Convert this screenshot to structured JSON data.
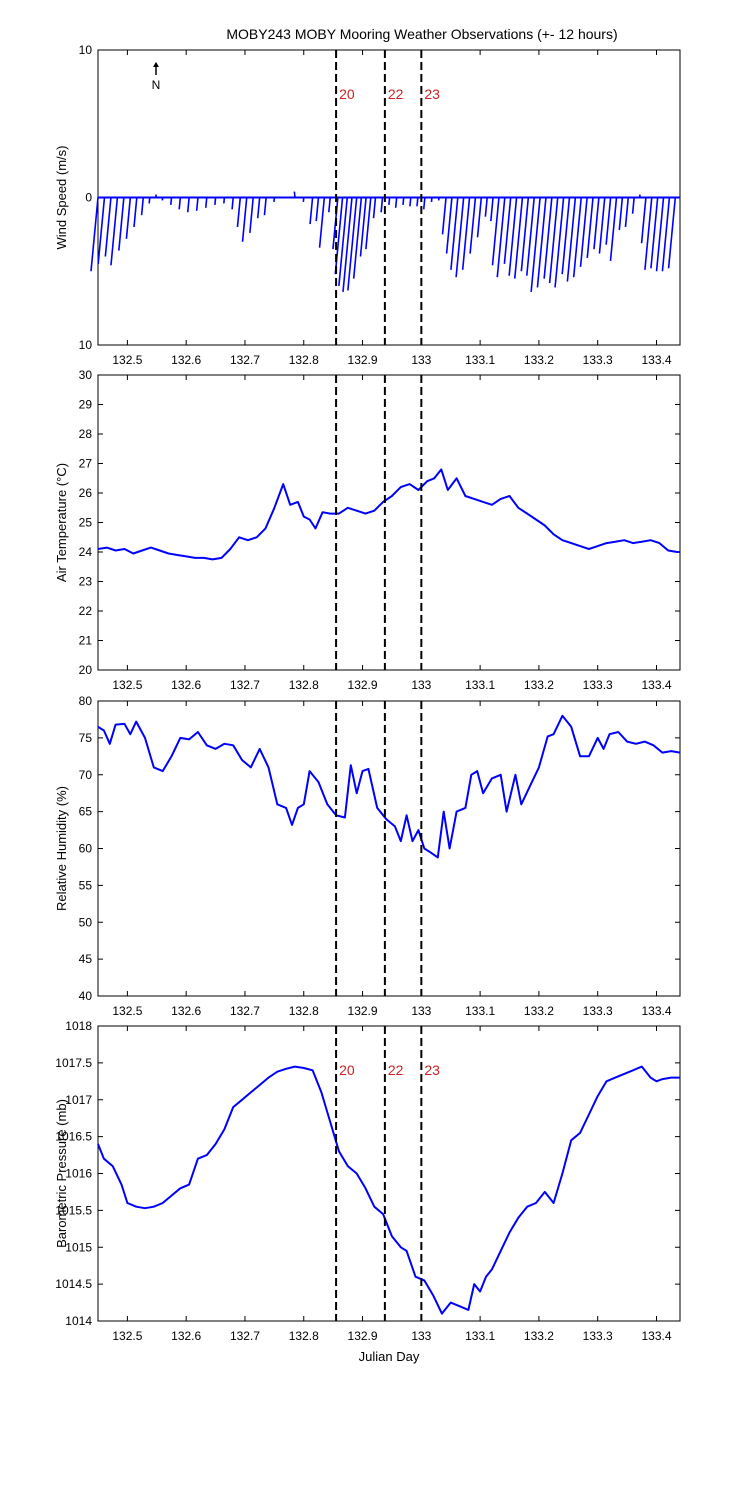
{
  "title": "MOBY243 MOBY Mooring Weather Observations (+- 12 hours)",
  "colors": {
    "series": "#0000ff",
    "marker_text": "#cc2222",
    "axes": "#000000"
  },
  "chart_data": [
    {
      "id": "wind",
      "type": "line",
      "subtype": "wind-stick",
      "ylabel": "Wind Speed (m/s)",
      "xlim": [
        132.45,
        133.44
      ],
      "ylim": [
        -10,
        10
      ],
      "y_ticks": [
        10,
        0,
        10
      ],
      "x_ticks": [
        132.5,
        132.6,
        132.7,
        132.8,
        132.9,
        133.0,
        133.1,
        133.2,
        133.3,
        133.4
      ],
      "x_tick_labels": [
        "132.5",
        "132.6",
        "132.7",
        "132.8",
        "132.9",
        "133",
        "133.1",
        "133.2",
        "133.3",
        "133.4"
      ],
      "north_label": "N",
      "marker_labels": [
        "20",
        "22",
        "23"
      ],
      "markers_x": [
        132.855,
        132.938,
        133.0
      ],
      "note": "tips = (x, speed_up) of each wind stick end; stick starts at (x,0)",
      "series": [
        {
          "tips": [
            [
              132.45,
              -5.0
            ],
            [
              132.461,
              -4.5
            ],
            [
              132.472,
              -4.0
            ],
            [
              132.483,
              -4.6
            ],
            [
              132.494,
              -3.6
            ],
            [
              132.505,
              -2.8
            ],
            [
              132.516,
              -2.0
            ],
            [
              132.527,
              -1.2
            ],
            [
              132.538,
              -0.4
            ],
            [
              132.549,
              0.2
            ],
            [
              132.56,
              -0.2
            ],
            [
              132.575,
              -0.5
            ],
            [
              132.59,
              -0.8
            ],
            [
              132.605,
              -1.0
            ],
            [
              132.62,
              -0.9
            ],
            [
              132.635,
              -0.7
            ],
            [
              132.65,
              -0.5
            ],
            [
              132.665,
              -0.4
            ],
            [
              132.68,
              -0.8
            ],
            [
              132.692,
              -2.0
            ],
            [
              132.703,
              -3.0
            ],
            [
              132.714,
              -2.4
            ],
            [
              132.725,
              -1.4
            ],
            [
              132.736,
              -1.2
            ],
            [
              132.75,
              -0.3
            ],
            [
              132.77,
              0.0
            ],
            [
              132.785,
              0.4
            ],
            [
              132.8,
              -0.3
            ],
            [
              132.815,
              -1.8
            ],
            [
              132.825,
              -1.6
            ],
            [
              132.835,
              -3.4
            ],
            [
              132.845,
              -1.0
            ],
            [
              132.858,
              -3.5
            ],
            [
              132.866,
              -5.2
            ],
            [
              132.874,
              -6.0
            ],
            [
              132.882,
              -6.4
            ],
            [
              132.89,
              -6.3
            ],
            [
              132.898,
              -5.5
            ],
            [
              132.906,
              -4.0
            ],
            [
              132.914,
              -3.5
            ],
            [
              132.922,
              -1.4
            ],
            [
              132.934,
              -1.0
            ],
            [
              132.946,
              -0.5
            ],
            [
              132.958,
              -0.7
            ],
            [
              132.97,
              -0.5
            ],
            [
              132.982,
              -0.6
            ],
            [
              132.994,
              -0.6
            ],
            [
              133.006,
              -0.8
            ],
            [
              133.018,
              -0.3
            ],
            [
              133.03,
              -0.2
            ],
            [
              133.042,
              -2.5
            ],
            [
              133.052,
              -3.8
            ],
            [
              133.062,
              -4.9
            ],
            [
              133.072,
              -5.4
            ],
            [
              133.082,
              -4.9
            ],
            [
              133.092,
              -3.8
            ],
            [
              133.102,
              -2.7
            ],
            [
              133.112,
              -1.3
            ],
            [
              133.122,
              -1.6
            ],
            [
              133.132,
              -4.6
            ],
            [
              133.142,
              -5.4
            ],
            [
              133.152,
              -4.5
            ],
            [
              133.162,
              -5.3
            ],
            [
              133.172,
              -5.5
            ],
            [
              133.182,
              -5.0
            ],
            [
              133.192,
              -5.3
            ],
            [
              133.202,
              -6.4
            ],
            [
              133.212,
              -6.1
            ],
            [
              133.222,
              -5.5
            ],
            [
              133.232,
              -5.8
            ],
            [
              133.242,
              -6.1
            ],
            [
              133.252,
              -5.2
            ],
            [
              133.262,
              -5.7
            ],
            [
              133.272,
              -5.4
            ],
            [
              133.282,
              -4.7
            ],
            [
              133.292,
              -4.1
            ],
            [
              133.302,
              -3.5
            ],
            [
              133.312,
              -3.8
            ],
            [
              133.322,
              -3.2
            ],
            [
              133.332,
              -4.3
            ],
            [
              133.342,
              -2.2
            ],
            [
              133.352,
              -2.0
            ],
            [
              133.362,
              -1.1
            ],
            [
              133.372,
              0.2
            ],
            [
              133.382,
              -3.1
            ],
            [
              133.392,
              -4.9
            ],
            [
              133.402,
              -4.8
            ],
            [
              133.412,
              -5.0
            ],
            [
              133.422,
              -5.0
            ],
            [
              133.432,
              -4.8
            ]
          ]
        }
      ]
    },
    {
      "id": "temp",
      "type": "line",
      "ylabel": "Air Temperature (°C)",
      "xlim": [
        132.45,
        133.44
      ],
      "ylim": [
        20,
        30
      ],
      "y_ticks": [
        20,
        21,
        22,
        23,
        24,
        25,
        26,
        27,
        28,
        29,
        30
      ],
      "x_ticks": [
        132.5,
        132.6,
        132.7,
        132.8,
        132.9,
        133.0,
        133.1,
        133.2,
        133.3,
        133.4
      ],
      "x_tick_labels": [
        "132.5",
        "132.6",
        "132.7",
        "132.8",
        "132.9",
        "133",
        "133.1",
        "133.2",
        "133.3",
        "133.4"
      ],
      "markers_x": [
        132.855,
        132.938,
        133.0
      ],
      "series": [
        {
          "x": [
            132.45,
            132.465,
            132.48,
            132.495,
            132.51,
            132.525,
            132.54,
            132.555,
            132.57,
            132.585,
            132.6,
            132.615,
            132.63,
            132.645,
            132.66,
            132.675,
            132.69,
            132.705,
            132.72,
            132.735,
            132.75,
            132.765,
            132.777,
            132.79,
            132.8,
            132.81,
            132.82,
            132.832,
            132.845,
            132.86,
            132.875,
            132.89,
            132.905,
            132.92,
            132.935,
            132.95,
            132.965,
            132.98,
            132.995,
            133.01,
            133.022,
            133.034,
            133.045,
            133.06,
            133.075,
            133.09,
            133.105,
            133.12,
            133.135,
            133.15,
            133.165,
            133.18,
            133.195,
            133.21,
            133.225,
            133.24,
            133.255,
            133.27,
            133.285,
            133.3,
            133.315,
            133.33,
            133.345,
            133.36,
            133.375,
            133.39,
            133.405,
            133.42,
            133.435,
            133.44
          ],
          "values": [
            24.1,
            24.15,
            24.05,
            24.1,
            23.95,
            24.05,
            24.15,
            24.05,
            23.95,
            23.9,
            23.85,
            23.8,
            23.8,
            23.75,
            23.8,
            24.1,
            24.5,
            24.4,
            24.5,
            24.8,
            25.5,
            26.3,
            25.6,
            25.7,
            25.2,
            25.1,
            24.8,
            25.35,
            25.3,
            25.3,
            25.5,
            25.4,
            25.3,
            25.4,
            25.7,
            25.9,
            26.2,
            26.3,
            26.1,
            26.4,
            26.5,
            26.8,
            26.1,
            26.5,
            25.9,
            25.8,
            25.7,
            25.6,
            25.8,
            25.9,
            25.5,
            25.3,
            25.1,
            24.9,
            24.6,
            24.4,
            24.3,
            24.2,
            24.1,
            24.2,
            24.3,
            24.35,
            24.4,
            24.3,
            24.35,
            24.4,
            24.3,
            24.05,
            24.0,
            24.0
          ]
        }
      ]
    },
    {
      "id": "humidity",
      "type": "line",
      "ylabel": "Relative Humidity (%)",
      "xlim": [
        132.45,
        133.44
      ],
      "ylim": [
        40,
        80
      ],
      "y_ticks": [
        40,
        45,
        50,
        55,
        60,
        65,
        70,
        75,
        80
      ],
      "x_ticks": [
        132.5,
        132.6,
        132.7,
        132.8,
        132.9,
        133.0,
        133.1,
        133.2,
        133.3,
        133.4
      ],
      "x_tick_labels": [
        "132.5",
        "132.6",
        "132.7",
        "132.8",
        "132.9",
        "133",
        "133.1",
        "133.2",
        "133.3",
        "133.4"
      ],
      "markers_x": [
        132.855,
        132.938,
        133.0
      ],
      "series": [
        {
          "x": [
            132.45,
            132.46,
            132.47,
            132.48,
            132.495,
            132.505,
            132.515,
            132.53,
            132.545,
            132.56,
            132.575,
            132.59,
            132.605,
            132.62,
            132.635,
            132.65,
            132.665,
            132.68,
            132.695,
            132.71,
            132.725,
            132.74,
            132.755,
            132.77,
            132.78,
            132.79,
            132.8,
            132.81,
            132.825,
            132.84,
            132.855,
            132.87,
            132.88,
            132.89,
            132.9,
            132.91,
            132.925,
            132.94,
            132.955,
            132.965,
            132.975,
            132.985,
            132.995,
            133.005,
            133.015,
            133.028,
            133.038,
            133.048,
            133.06,
            133.075,
            133.085,
            133.095,
            133.105,
            133.12,
            133.135,
            133.145,
            133.16,
            133.17,
            133.185,
            133.2,
            133.215,
            133.225,
            133.24,
            133.255,
            133.27,
            133.285,
            133.3,
            133.31,
            133.32,
            133.335,
            133.35,
            133.365,
            133.38,
            133.395,
            133.41,
            133.425,
            133.44
          ],
          "values": [
            76.5,
            76.0,
            74.2,
            76.8,
            76.9,
            75.5,
            77.2,
            75.0,
            71.0,
            70.5,
            72.5,
            75.0,
            74.8,
            75.8,
            74.0,
            73.5,
            74.2,
            74.0,
            72.0,
            71.0,
            73.5,
            71.0,
            66.0,
            65.5,
            63.2,
            65.5,
            66.0,
            70.5,
            69.0,
            66.0,
            64.5,
            64.2,
            71.3,
            67.5,
            70.5,
            70.8,
            65.5,
            64.0,
            63.0,
            61.0,
            64.5,
            61.0,
            62.5,
            60.0,
            59.5,
            58.8,
            65.0,
            60.0,
            65.0,
            65.5,
            70.0,
            70.5,
            67.5,
            69.5,
            70.0,
            65.0,
            70.0,
            66.0,
            68.5,
            71.0,
            75.2,
            75.5,
            78.0,
            76.5,
            72.5,
            72.5,
            75.0,
            73.5,
            75.5,
            75.8,
            74.5,
            74.2,
            74.5,
            74.0,
            73.0,
            73.2,
            73.0
          ]
        }
      ]
    },
    {
      "id": "pressure",
      "type": "line",
      "ylabel": "Barometric Pressure (mb)",
      "xlabel": "Julian Day",
      "xlim": [
        132.45,
        133.44
      ],
      "ylim": [
        1014,
        1018
      ],
      "y_ticks": [
        1014,
        1014.5,
        1015,
        1015.5,
        1016,
        1016.5,
        1017,
        1017.5,
        1018
      ],
      "x_ticks": [
        132.5,
        132.6,
        132.7,
        132.8,
        132.9,
        133.0,
        133.1,
        133.2,
        133.3,
        133.4
      ],
      "x_tick_labels": [
        "132.5",
        "132.6",
        "132.7",
        "132.8",
        "132.9",
        "133",
        "133.1",
        "133.2",
        "133.3",
        "133.4"
      ],
      "marker_labels": [
        "20",
        "22",
        "23"
      ],
      "markers_x": [
        132.855,
        132.938,
        133.0
      ],
      "series": [
        {
          "x": [
            132.45,
            132.46,
            132.475,
            132.49,
            132.5,
            132.515,
            132.53,
            132.545,
            132.56,
            132.575,
            132.59,
            132.605,
            132.62,
            132.635,
            132.65,
            132.665,
            132.68,
            132.695,
            132.71,
            132.725,
            132.74,
            132.755,
            132.77,
            132.785,
            132.8,
            132.815,
            132.83,
            132.845,
            132.86,
            132.875,
            132.89,
            132.905,
            132.92,
            132.935,
            132.95,
            132.965,
            132.975,
            132.99,
            133.005,
            133.02,
            133.035,
            133.05,
            133.065,
            133.08,
            133.09,
            133.1,
            133.11,
            133.12,
            133.135,
            133.15,
            133.165,
            133.18,
            133.195,
            133.21,
            133.225,
            133.24,
            133.255,
            133.27,
            133.285,
            133.3,
            133.315,
            133.33,
            133.345,
            133.36,
            133.375,
            133.39,
            133.4,
            133.41,
            133.425,
            133.44
          ],
          "values": [
            1016.4,
            1016.2,
            1016.1,
            1015.85,
            1015.6,
            1015.55,
            1015.53,
            1015.55,
            1015.6,
            1015.7,
            1015.8,
            1015.85,
            1016.2,
            1016.25,
            1016.4,
            1016.6,
            1016.9,
            1017.0,
            1017.1,
            1017.2,
            1017.3,
            1017.38,
            1017.42,
            1017.45,
            1017.43,
            1017.4,
            1017.1,
            1016.7,
            1016.3,
            1016.1,
            1016.0,
            1015.8,
            1015.55,
            1015.45,
            1015.15,
            1015.0,
            1014.95,
            1014.6,
            1014.55,
            1014.35,
            1014.1,
            1014.25,
            1014.2,
            1014.15,
            1014.5,
            1014.4,
            1014.6,
            1014.7,
            1014.95,
            1015.2,
            1015.4,
            1015.55,
            1015.6,
            1015.75,
            1015.6,
            1016.0,
            1016.45,
            1016.55,
            1016.8,
            1017.05,
            1017.25,
            1017.3,
            1017.35,
            1017.4,
            1017.45,
            1017.3,
            1017.25,
            1017.28,
            1017.3,
            1017.3
          ]
        }
      ]
    }
  ]
}
